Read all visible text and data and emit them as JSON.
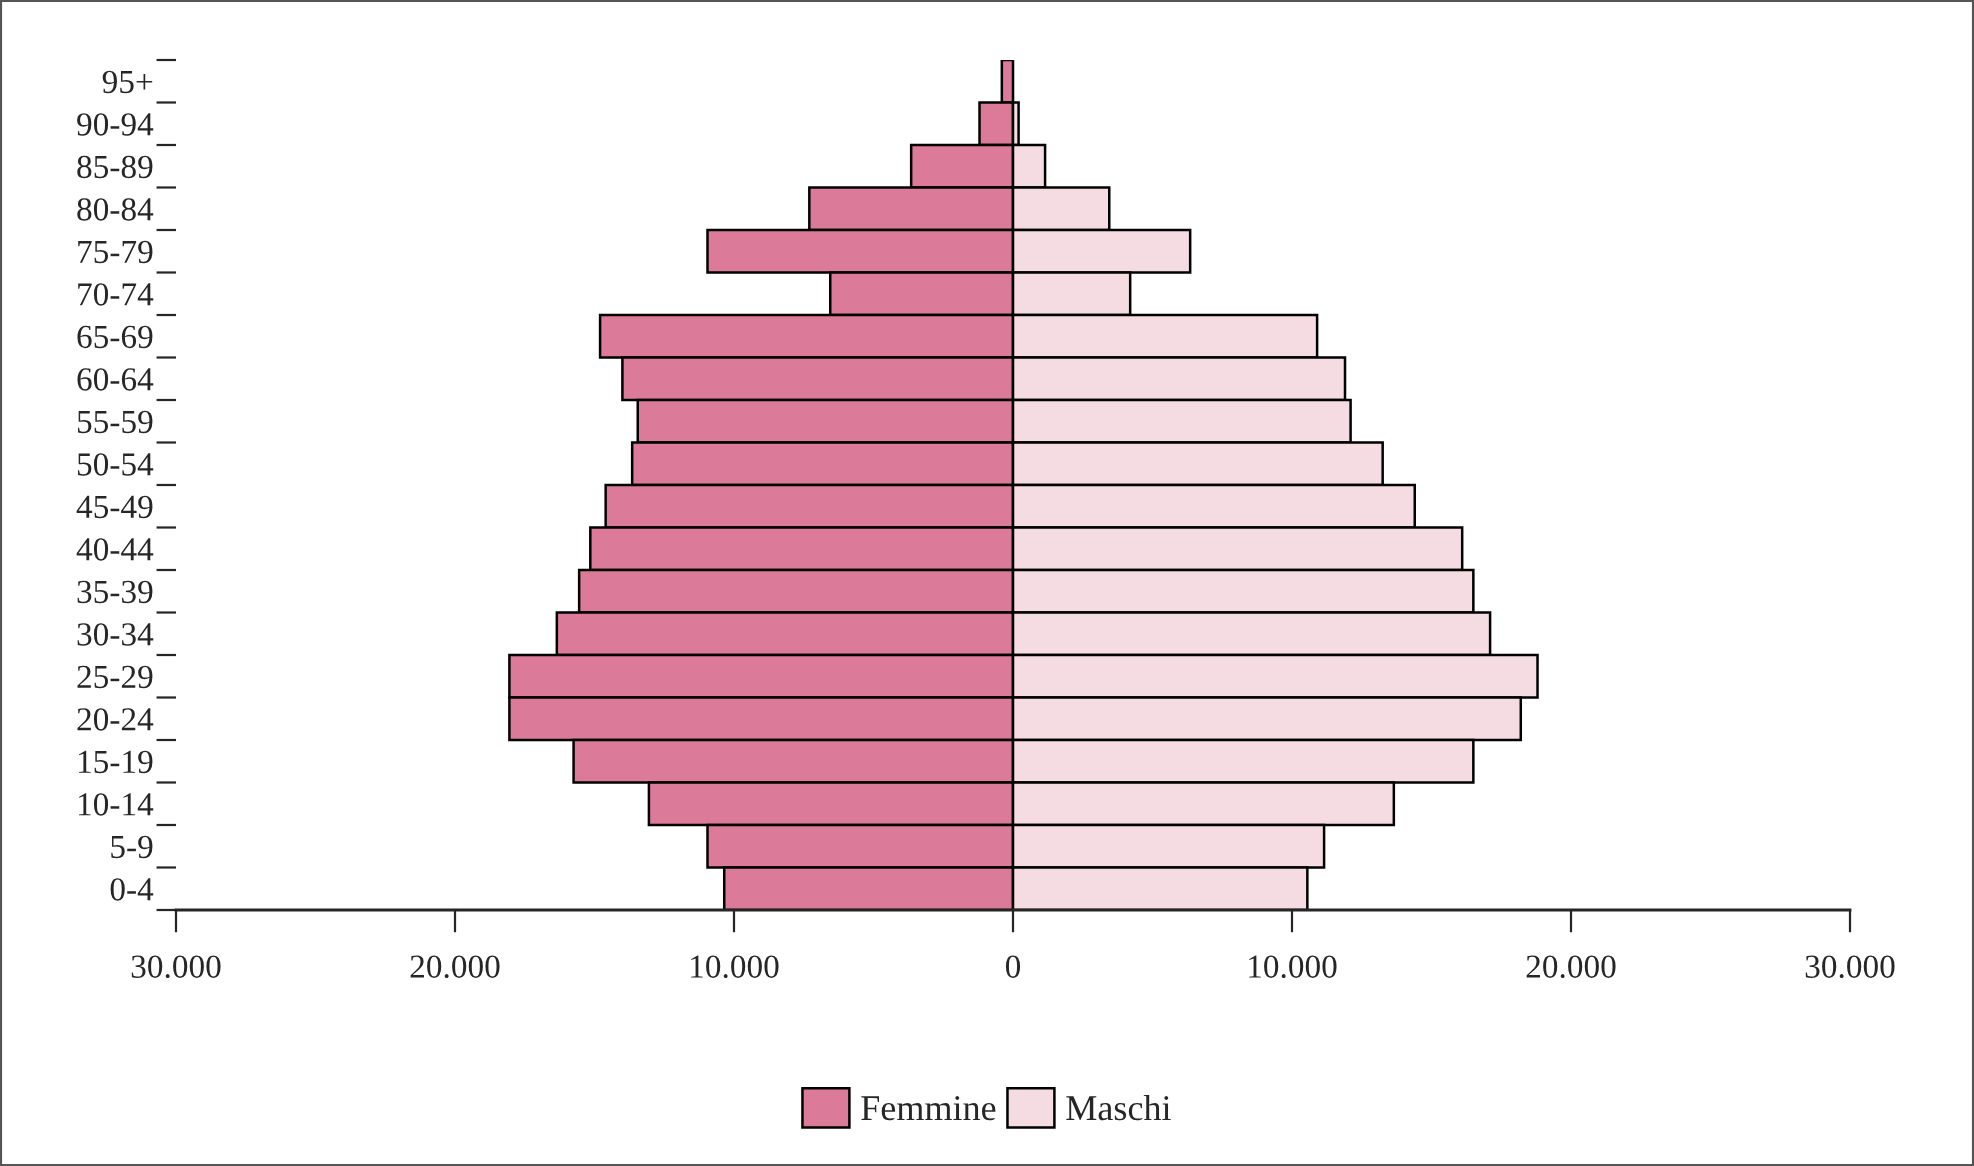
{
  "chart_data": {
    "type": "bar",
    "orientation": "horizontal",
    "categories": [
      "95+",
      "90-94",
      "85-89",
      "80-84",
      "75-79",
      "70-74",
      "65-69",
      "60-64",
      "55-59",
      "50-54",
      "45-49",
      "40-44",
      "35-39",
      "30-34",
      "25-29",
      "20-24",
      "15-19",
      "10-14",
      "5-9",
      "0-4"
    ],
    "series": [
      {
        "name": "Femmine",
        "color": "#db7b99",
        "values": [
          -400,
          -1200,
          -3650,
          -7300,
          -10950,
          -6550,
          -14800,
          -14000,
          -13450,
          -13650,
          -14600,
          -15150,
          -15550,
          -16350,
          -18050,
          -18050,
          -15750,
          -13050,
          -10950,
          -10350
        ]
      },
      {
        "name": "Maschi",
        "color": "#f5dce3",
        "values": [
          null,
          200,
          1150,
          3450,
          6350,
          4200,
          10900,
          11900,
          12100,
          13250,
          14400,
          16100,
          16500,
          17100,
          18800,
          18200,
          16500,
          13650,
          11150,
          10550
        ]
      }
    ],
    "xlim": [
      -30000,
      30000
    ],
    "xticks": [
      {
        "value": -30000,
        "label": "30.000"
      },
      {
        "value": -20000,
        "label": "20.000"
      },
      {
        "value": -10000,
        "label": "10.000"
      },
      0,
      {
        "value": 10000,
        "label": "10.000"
      },
      {
        "value": 20000,
        "label": "20.000"
      },
      {
        "value": 30000,
        "label": "30.000"
      }
    ],
    "grid": false,
    "legend": "bottom",
    "stacked": true
  }
}
